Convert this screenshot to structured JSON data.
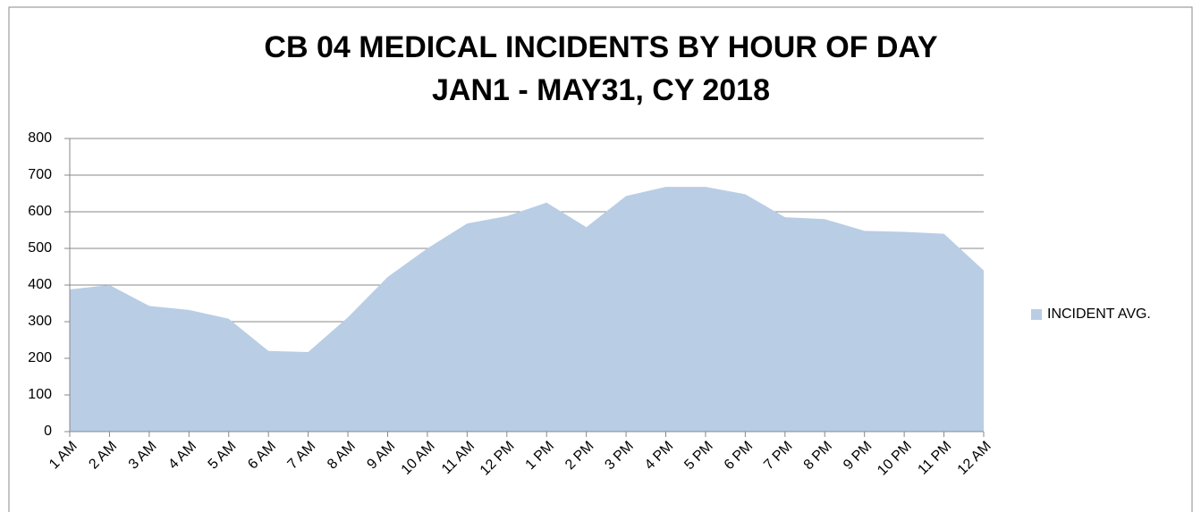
{
  "chart_data": {
    "type": "area",
    "title": "CB 04 MEDICAL INCIDENTS BY HOUR OF DAY",
    "subtitle": "JAN1 - MAY31, CY 2018",
    "categories": [
      "1 AM",
      "2 AM",
      "3 AM",
      "4 AM",
      "5 AM",
      "6 AM",
      "7 AM",
      "8 AM",
      "9 AM",
      "10 AM",
      "11 AM",
      "12 PM",
      "1 PM",
      "2 PM",
      "3 PM",
      "4 PM",
      "5 PM",
      "6 PM",
      "7 PM",
      "8 PM",
      "9 PM",
      "10 PM",
      "11 PM",
      "12 AM"
    ],
    "series": [
      {
        "name": "INCIDENT AVG.",
        "color": "#b9cde5",
        "values": [
          388,
          400,
          343,
          332,
          308,
          220,
          217,
          312,
          422,
          500,
          568,
          588,
          625,
          558,
          643,
          668,
          668,
          648,
          585,
          580,
          548,
          545,
          540,
          440
        ]
      }
    ],
    "ylim": [
      0,
      800
    ],
    "yticks": [
      0,
      100,
      200,
      300,
      400,
      500,
      600,
      700,
      800
    ],
    "grid": true,
    "legend": "right"
  }
}
